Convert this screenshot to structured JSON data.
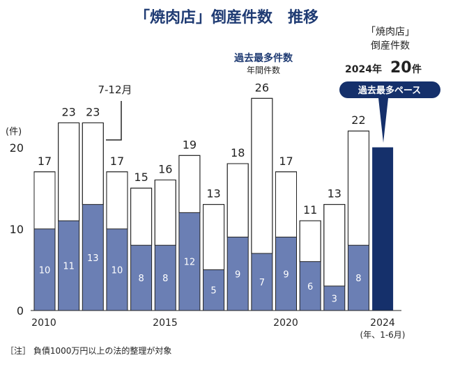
{
  "title": "「焼肉店」倒産件数　推移",
  "y_unit": "(件)",
  "y_ticks": [
    "20",
    "10",
    "0"
  ],
  "x_ticks": [
    "2010",
    "2015",
    "2020",
    "2024"
  ],
  "x_sub": "(年、1-6月)",
  "annotation_h2": "7-12月",
  "record": {
    "line1": "過去最多件数",
    "line2": "年間件数"
  },
  "forecast": {
    "line1": "「焼肉店」",
    "line2": "倒産件数",
    "year": "2024年",
    "value": "20",
    "unit": "件",
    "badge": "過去最多ペース"
  },
  "note": "［注］ 負債1000万円以上の法的整理が対象",
  "colors": {
    "h1": "#6b7fb4",
    "forecast": "#15306b",
    "outline": "#222222",
    "title": "#1f3b73"
  },
  "chart_data": {
    "type": "bar",
    "title": "「焼肉店」倒産件数　推移",
    "ylabel": "(件)",
    "ylim": [
      0,
      20
    ],
    "categories": [
      "2010",
      "2011",
      "2012",
      "2013",
      "2014",
      "2015",
      "2016",
      "2017",
      "2018",
      "2019",
      "2020",
      "2021",
      "2022",
      "2023",
      "2024"
    ],
    "series": [
      {
        "name": "",
        "values": [
          10,
          11,
          13,
          10,
          8,
          8,
          12,
          5,
          9,
          7,
          9,
          6,
          3,
          8,
          null
        ]
      },
      {
        "name": "7-12月",
        "values": [
          7,
          12,
          10,
          7,
          7,
          8,
          7,
          8,
          9,
          19,
          8,
          5,
          10,
          14,
          null
        ]
      }
    ],
    "totals": [
      "17",
      "23",
      "23",
      "17",
      "15",
      "16",
      "19",
      "13",
      "18",
      "26",
      "17",
      "11",
      "13",
      "22",
      "20"
    ],
    "h1_labels": [
      "10",
      "11",
      "13",
      "10",
      "8",
      "8",
      "12",
      "5",
      "9",
      "7",
      "9",
      "6",
      "3",
      "8",
      ""
    ]
  }
}
